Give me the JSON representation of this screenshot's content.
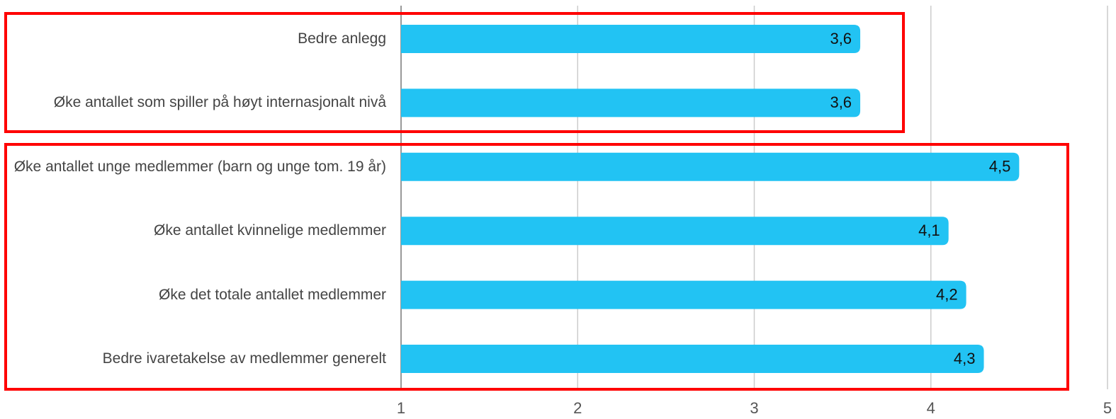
{
  "chart_data": {
    "type": "bar",
    "orientation": "horizontal",
    "categories": [
      "Bedre anlegg",
      "Øke antallet som spiller på høyt internasjonalt nivå",
      "Øke antallet unge medlemmer (barn og unge tom. 19 år)",
      "Øke antallet kvinnelige medlemmer",
      "Øke det totale antallet medlemmer",
      "Bedre ivaretakelse av medlemmer generelt"
    ],
    "values": [
      3.6,
      3.6,
      4.5,
      4.1,
      4.2,
      4.3
    ],
    "value_labels": [
      "3,6",
      "3,6",
      "4,5",
      "4,1",
      "4,2",
      "4,3"
    ],
    "color": "#22c3f3",
    "xlim": [
      1,
      5
    ],
    "xticks": [
      1,
      2,
      3,
      4,
      5
    ],
    "grid": true
  }
}
